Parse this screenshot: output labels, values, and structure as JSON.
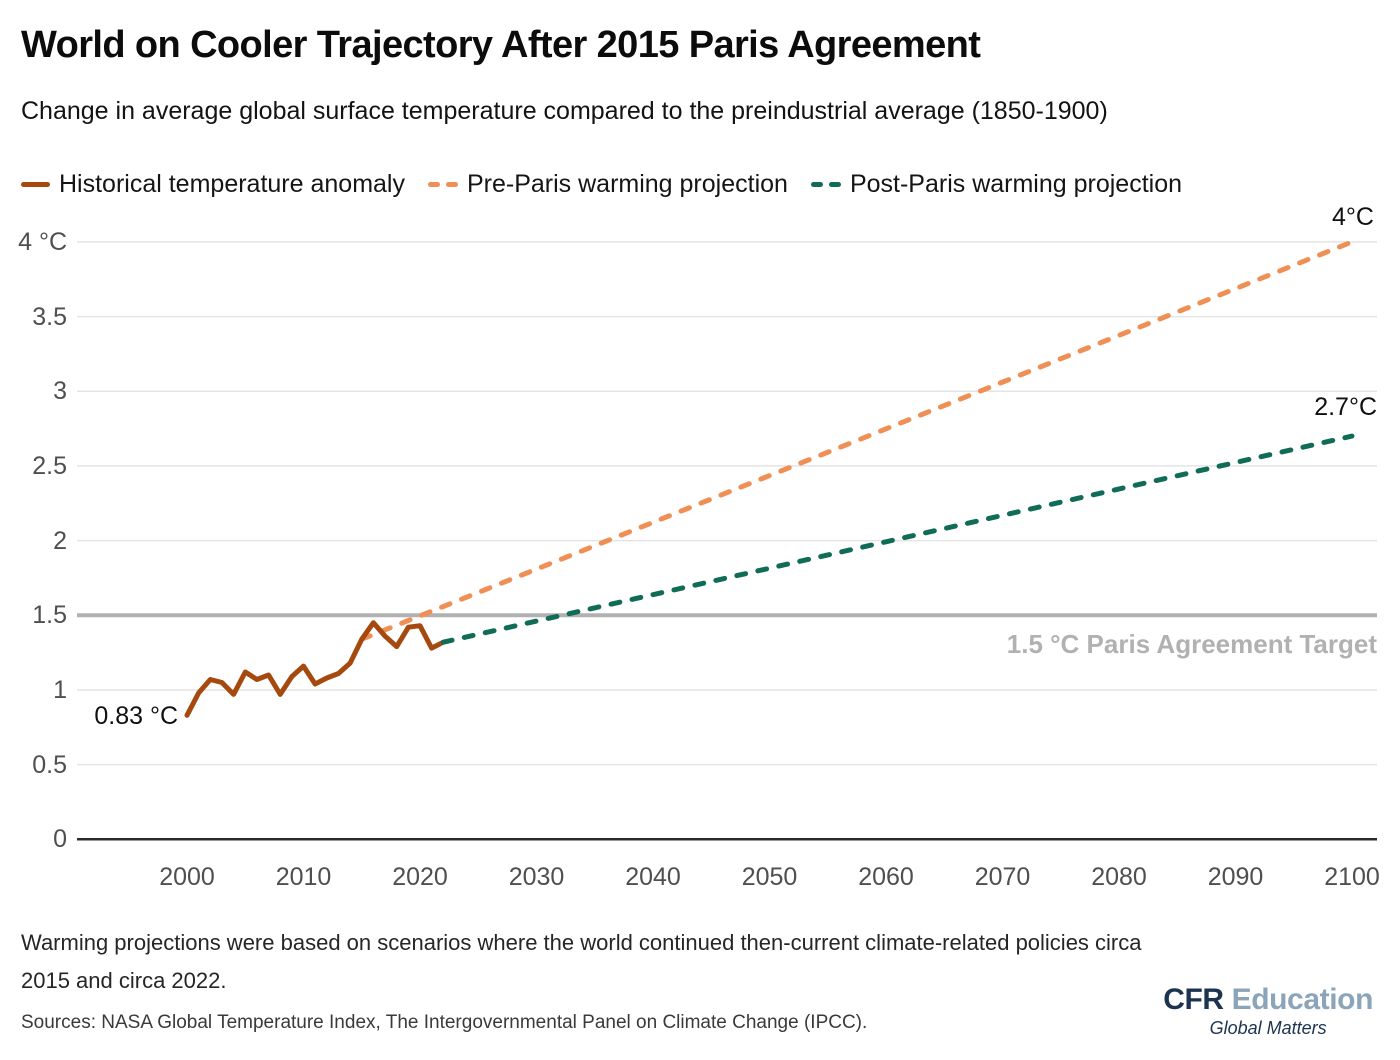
{
  "header": {
    "title": "World on Cooler Trajectory After 2015 Paris Agreement",
    "subtitle": "Change in average global surface temperature compared to the preindustrial average (1850-1900)"
  },
  "legend": [
    {
      "label": "Historical temperature anomaly",
      "color": "#a5490f",
      "style": "solid"
    },
    {
      "label": "Pre-Paris warming projection",
      "color": "#ef8f55",
      "style": "dashed"
    },
    {
      "label": "Post-Paris warming projection",
      "color": "#116c57",
      "style": "dashed"
    }
  ],
  "chart_data": {
    "type": "line",
    "title": "World on Cooler Trajectory After 2015 Paris Agreement",
    "xlabel": "",
    "ylabel": "",
    "grid": "horizontal",
    "legend_position": "top",
    "xlim": [
      1990.5,
      2102
    ],
    "ylim": [
      0,
      4
    ],
    "x_ticks": [
      2000,
      2010,
      2020,
      2030,
      2040,
      2050,
      2060,
      2070,
      2080,
      2090,
      2100
    ],
    "y_ticks": [
      {
        "value": 4,
        "label": "4 °C"
      },
      {
        "value": 3.5,
        "label": "3.5"
      },
      {
        "value": 3,
        "label": "3"
      },
      {
        "value": 2.5,
        "label": "2.5"
      },
      {
        "value": 2,
        "label": "2"
      },
      {
        "value": 1.5,
        "label": "1.5"
      },
      {
        "value": 1,
        "label": "1"
      },
      {
        "value": 0.5,
        "label": "0.5"
      },
      {
        "value": 0,
        "label": "0"
      }
    ],
    "reference_line": {
      "value": 1.5,
      "label": "1.5 °C Paris Agreement Target",
      "color": "#b1b1b1"
    },
    "series": [
      {
        "name": "Historical temperature anomaly",
        "color": "#a5490f",
        "dashed": false,
        "x": [
          2000,
          2001,
          2002,
          2003,
          2004,
          2005,
          2006,
          2007,
          2008,
          2009,
          2010,
          2011,
          2012,
          2013,
          2014,
          2015,
          2016,
          2017,
          2018,
          2019,
          2020,
          2021,
          2022
        ],
        "y": [
          0.83,
          0.98,
          1.07,
          1.05,
          0.97,
          1.12,
          1.07,
          1.1,
          0.97,
          1.09,
          1.16,
          1.04,
          1.08,
          1.11,
          1.18,
          1.34,
          1.45,
          1.36,
          1.29,
          1.42,
          1.43,
          1.28,
          1.32
        ]
      },
      {
        "name": "Pre-Paris warming projection",
        "color": "#ef8f55",
        "dashed": true,
        "x": [
          2015,
          2100
        ],
        "y": [
          1.34,
          4.0
        ]
      },
      {
        "name": "Post-Paris warming projection",
        "color": "#116c57",
        "dashed": true,
        "x": [
          2022,
          2100
        ],
        "y": [
          1.32,
          2.7
        ]
      }
    ],
    "annotations": [
      {
        "text": "0.83 °C",
        "year": 2000,
        "value": 0.83
      },
      {
        "text": "4°C",
        "year": 2100,
        "value": 4
      },
      {
        "text": "2.7°C",
        "year": 2100,
        "value": 2.7
      }
    ]
  },
  "footnote": "Warming projections were based on scenarios where the world continued then-current climate-related policies circa 2015 and circa 2022.",
  "sources": "Sources: NASA Global Temperature Index, The Intergovernmental Panel on Climate Change (IPCC).",
  "logo": {
    "brand_bold": "CFR",
    "brand_light": "Education",
    "tagline": "Global Matters",
    "brand_color": "#1d3450",
    "light_color": "#8ca4b9"
  }
}
